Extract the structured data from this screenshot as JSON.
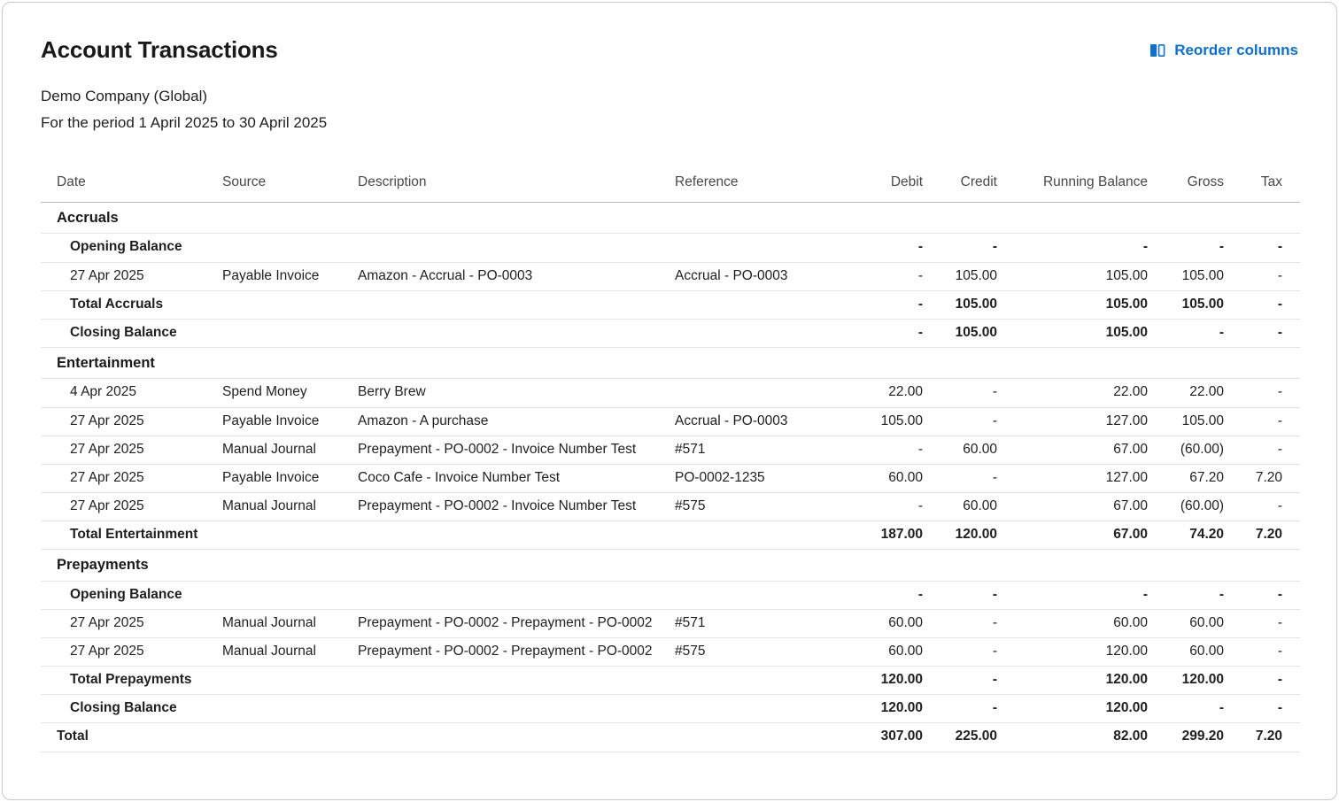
{
  "page": {
    "title": "Account Transactions",
    "company": "Demo Company (Global)",
    "period": "For the period 1 April 2025 to 30 April 2025",
    "reorder_label": "Reorder columns"
  },
  "colors": {
    "accent": "#1070CA",
    "text": "#1f1f1f",
    "header_text": "#484848",
    "row_border": "#e4e4e4",
    "header_border": "#b9b9b9"
  },
  "icons": {
    "reorder": "columns-icon"
  },
  "table": {
    "columns": [
      {
        "label": "Date"
      },
      {
        "label": "Source"
      },
      {
        "label": "Description"
      },
      {
        "label": "Reference"
      },
      {
        "label": "Debit"
      },
      {
        "label": "Credit"
      },
      {
        "label": "Running Balance"
      },
      {
        "label": "Gross"
      },
      {
        "label": "Tax"
      }
    ],
    "sections": [
      {
        "name": "Accruals",
        "rows": [
          {
            "type": "summary",
            "label": "Opening Balance",
            "values": [
              "-",
              "-",
              "-",
              "-",
              "-"
            ]
          },
          {
            "type": "data",
            "date": "27 Apr 2025",
            "source": "Payable Invoice",
            "description": "Amazon - Accrual - PO-0003",
            "reference": "Accrual - PO-0003",
            "values": [
              "-",
              "105.00",
              "105.00",
              "105.00",
              "-"
            ]
          },
          {
            "type": "summary",
            "label": "Total Accruals",
            "values": [
              "-",
              "105.00",
              "105.00",
              "105.00",
              "-"
            ]
          },
          {
            "type": "summary",
            "label": "Closing Balance",
            "values": [
              "-",
              "105.00",
              "105.00",
              "-",
              "-"
            ]
          }
        ]
      },
      {
        "name": "Entertainment",
        "rows": [
          {
            "type": "data",
            "date": "4 Apr 2025",
            "source": "Spend Money",
            "description": "Berry Brew",
            "reference": "",
            "values": [
              "22.00",
              "-",
              "22.00",
              "22.00",
              "-"
            ]
          },
          {
            "type": "data",
            "date": "27 Apr 2025",
            "source": "Payable Invoice",
            "description": "Amazon - A purchase",
            "reference": "Accrual - PO-0003",
            "values": [
              "105.00",
              "-",
              "127.00",
              "105.00",
              "-"
            ]
          },
          {
            "type": "data",
            "date": "27 Apr 2025",
            "source": "Manual Journal",
            "description": "Prepayment - PO-0002 - Invoice Number Test",
            "reference": "#571",
            "values": [
              "-",
              "60.00",
              "67.00",
              "(60.00)",
              "-"
            ]
          },
          {
            "type": "data",
            "date": "27 Apr 2025",
            "source": "Payable Invoice",
            "description": "Coco Cafe - Invoice Number Test",
            "reference": "PO-0002-1235",
            "values": [
              "60.00",
              "-",
              "127.00",
              "67.20",
              "7.20"
            ]
          },
          {
            "type": "data",
            "date": "27 Apr 2025",
            "source": "Manual Journal",
            "description": "Prepayment - PO-0002 - Invoice Number Test",
            "reference": "#575",
            "values": [
              "-",
              "60.00",
              "67.00",
              "(60.00)",
              "-"
            ]
          },
          {
            "type": "summary",
            "label": "Total Entertainment",
            "values": [
              "187.00",
              "120.00",
              "67.00",
              "74.20",
              "7.20"
            ]
          }
        ]
      },
      {
        "name": "Prepayments",
        "rows": [
          {
            "type": "summary",
            "label": "Opening Balance",
            "values": [
              "-",
              "-",
              "-",
              "-",
              "-"
            ]
          },
          {
            "type": "data",
            "date": "27 Apr 2025",
            "source": "Manual Journal",
            "description": "Prepayment - PO-0002 - Prepayment - PO-0002",
            "reference": "#571",
            "values": [
              "60.00",
              "-",
              "60.00",
              "60.00",
              "-"
            ]
          },
          {
            "type": "data",
            "date": "27 Apr 2025",
            "source": "Manual Journal",
            "description": "Prepayment - PO-0002 - Prepayment - PO-0002",
            "reference": "#575",
            "values": [
              "60.00",
              "-",
              "120.00",
              "60.00",
              "-"
            ]
          },
          {
            "type": "summary",
            "label": "Total Prepayments",
            "values": [
              "120.00",
              "-",
              "120.00",
              "120.00",
              "-"
            ]
          },
          {
            "type": "summary",
            "label": "Closing Balance",
            "values": [
              "120.00",
              "-",
              "120.00",
              "-",
              "-"
            ]
          }
        ]
      }
    ],
    "total_row": {
      "label": "Total",
      "values": [
        "307.00",
        "225.00",
        "82.00",
        "299.20",
        "7.20"
      ]
    }
  }
}
